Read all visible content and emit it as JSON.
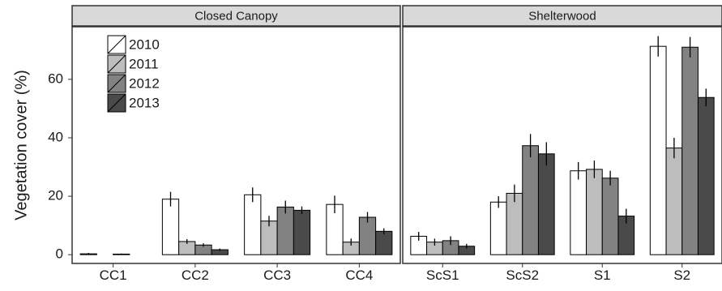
{
  "chart_data": {
    "type": "bar",
    "ylabel": "Vegetation cover (%)",
    "xlabel": "",
    "ylim": [
      -3,
      78
    ],
    "yticks": [
      0,
      20,
      40,
      60
    ],
    "grid": false,
    "legend_placement": "top-left",
    "facets": [
      {
        "title": "Closed Canopy",
        "categories": [
          "CC1",
          "CC2",
          "CC3",
          "CC4"
        ],
        "series": [
          {
            "name": "2010",
            "values": [
              0.3,
              19.0,
              20.5,
              17.2
            ],
            "errors": [
              0.3,
              2.5,
              2.5,
              3.0
            ]
          },
          {
            "name": "2011",
            "values": [
              0.0,
              4.5,
              11.5,
              4.3
            ],
            "errors": [
              0.0,
              0.8,
              1.8,
              1.2
            ]
          },
          {
            "name": "2012",
            "values": [
              0.2,
              3.3,
              16.3,
              12.8
            ],
            "errors": [
              0.2,
              0.6,
              2.2,
              1.8
            ]
          },
          {
            "name": "2013",
            "values": [
              0.0,
              1.7,
              15.2,
              8.0
            ],
            "errors": [
              0.0,
              0.4,
              1.3,
              1.0
            ]
          }
        ]
      },
      {
        "title": "Shelterwood",
        "categories": [
          "ScS1",
          "ScS2",
          "S1",
          "S2"
        ],
        "series": [
          {
            "name": "2010",
            "values": [
              6.3,
              18.0,
              28.7,
              71.3
            ],
            "errors": [
              1.5,
              2.0,
              3.0,
              3.5
            ]
          },
          {
            "name": "2011",
            "values": [
              4.3,
              21.0,
              29.2,
              36.5
            ],
            "errors": [
              1.2,
              3.0,
              3.0,
              3.5
            ]
          },
          {
            "name": "2012",
            "values": [
              4.8,
              37.3,
              26.2,
              71.0
            ],
            "errors": [
              1.5,
              4.0,
              2.5,
              3.5
            ]
          },
          {
            "name": "2013",
            "values": [
              2.9,
              34.5,
              13.2,
              53.8
            ],
            "errors": [
              0.8,
              4.0,
              2.5,
              3.0
            ]
          }
        ]
      }
    ],
    "colors": {
      "2010": "#ffffff",
      "2011": "#bdbdbd",
      "2012": "#828282",
      "2013": "#4a4a4a",
      "strip_fill": "#d9d9d9",
      "axis": "#333333"
    }
  }
}
